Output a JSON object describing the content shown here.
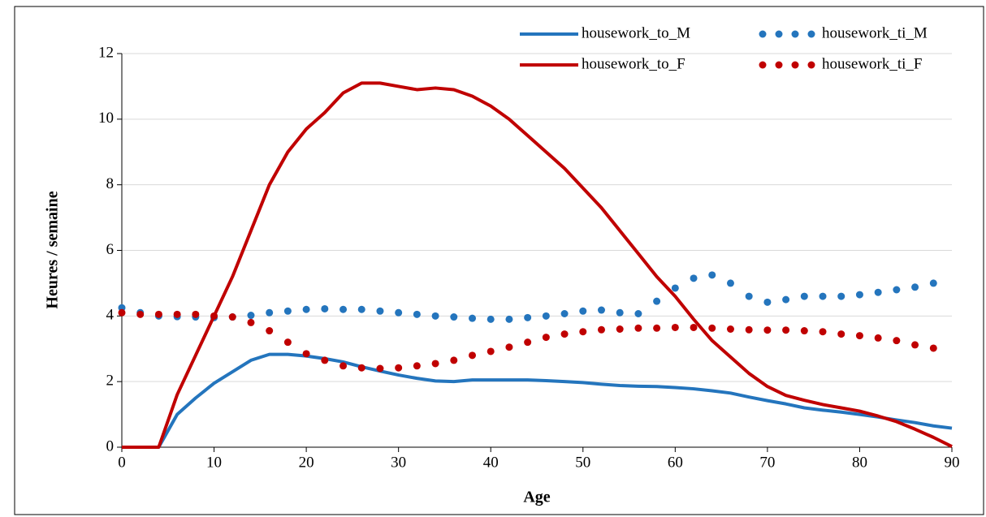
{
  "chart_data": {
    "type": "line",
    "x_label": "Age",
    "y_label": "Heures / semaine",
    "x": [
      0,
      2,
      4,
      6,
      8,
      10,
      12,
      14,
      16,
      18,
      20,
      22,
      24,
      26,
      28,
      30,
      32,
      34,
      36,
      38,
      40,
      42,
      44,
      46,
      48,
      50,
      52,
      54,
      56,
      58,
      60,
      62,
      64,
      66,
      68,
      70,
      72,
      74,
      76,
      78,
      80,
      82,
      84,
      86,
      88,
      90
    ],
    "series": [
      {
        "name": "housework_to_M",
        "color": "#2475bd",
        "style": "solid",
        "values": [
          0,
          0,
          0,
          1.0,
          1.5,
          1.95,
          2.3,
          2.65,
          2.83,
          2.83,
          2.78,
          2.7,
          2.6,
          2.45,
          2.32,
          2.2,
          2.1,
          2.02,
          2.0,
          2.05,
          2.05,
          2.05,
          2.05,
          2.03,
          2.0,
          1.97,
          1.92,
          1.88,
          1.86,
          1.85,
          1.82,
          1.78,
          1.72,
          1.65,
          1.53,
          1.42,
          1.32,
          1.2,
          1.13,
          1.07,
          1.0,
          0.92,
          0.83,
          0.75,
          0.65,
          0.58
        ]
      },
      {
        "name": "housework_ti_M",
        "color": "#2475bd",
        "style": "dotted",
        "values": [
          4.25,
          4.1,
          4.0,
          3.98,
          3.97,
          3.95,
          3.97,
          4.02,
          4.1,
          4.15,
          4.2,
          4.22,
          4.2,
          4.2,
          4.15,
          4.1,
          4.05,
          4.0,
          3.97,
          3.93,
          3.9,
          3.9,
          3.95,
          4.0,
          4.07,
          4.15,
          4.18,
          4.1,
          4.07,
          4.45,
          4.85,
          5.15,
          5.25,
          5.0,
          4.6,
          4.42,
          4.5,
          4.6,
          4.6,
          4.6,
          4.65,
          4.72,
          4.8,
          4.88,
          5.0,
          null
        ]
      },
      {
        "name": "housework_to_F",
        "color": "#c00000",
        "style": "solid",
        "values": [
          0,
          0,
          0,
          1.6,
          2.8,
          4.0,
          5.2,
          6.6,
          8.0,
          9.0,
          9.7,
          10.2,
          10.8,
          11.1,
          11.1,
          11.0,
          10.9,
          10.95,
          10.9,
          10.7,
          10.4,
          10.0,
          9.5,
          9.0,
          8.5,
          7.9,
          7.3,
          6.6,
          5.9,
          5.2,
          4.6,
          3.9,
          3.25,
          2.75,
          2.25,
          1.85,
          1.58,
          1.43,
          1.3,
          1.2,
          1.1,
          0.95,
          0.78,
          0.55,
          0.3,
          0.02
        ]
      },
      {
        "name": "housework_ti_F",
        "color": "#c00000",
        "style": "dotted",
        "values": [
          4.1,
          4.05,
          4.05,
          4.05,
          4.05,
          4.0,
          3.97,
          3.8,
          3.55,
          3.2,
          2.85,
          2.65,
          2.48,
          2.42,
          2.4,
          2.42,
          2.48,
          2.55,
          2.65,
          2.8,
          2.92,
          3.05,
          3.2,
          3.35,
          3.45,
          3.52,
          3.58,
          3.6,
          3.63,
          3.63,
          3.65,
          3.65,
          3.63,
          3.6,
          3.58,
          3.57,
          3.57,
          3.55,
          3.52,
          3.45,
          3.4,
          3.33,
          3.25,
          3.12,
          3.02,
          null
        ]
      }
    ],
    "xlim": [
      0,
      90
    ],
    "xticks": [
      0,
      10,
      20,
      30,
      40,
      50,
      60,
      70,
      80,
      90
    ],
    "ylim": [
      0,
      12
    ],
    "yticks": [
      0,
      2,
      4,
      6,
      8,
      10,
      12
    ],
    "grid": true,
    "legend": "top-right"
  }
}
